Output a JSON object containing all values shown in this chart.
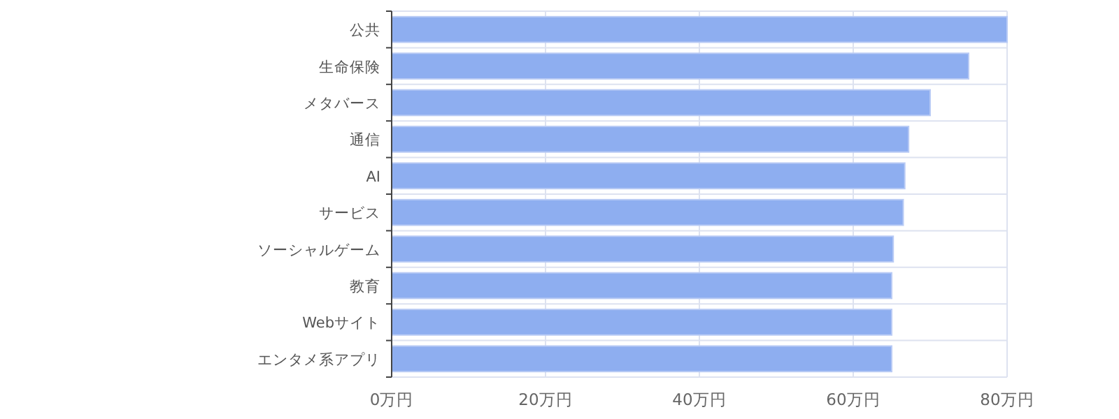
{
  "chart_data": {
    "type": "bar",
    "orientation": "horizontal",
    "categories": [
      "公共",
      "生命保険",
      "メタバース",
      "通信",
      "AI",
      "サービス",
      "ソーシャルゲーム",
      "教育",
      "Webサイト",
      "エンタメ系アプリ"
    ],
    "values": [
      80,
      75,
      70,
      67.2,
      66.7,
      66.5,
      65.2,
      65.0,
      65.0,
      65.0
    ],
    "color": "#8eaef0",
    "xlim": [
      0,
      80
    ],
    "xticks": [
      {
        "value": 0,
        "label": "0万円"
      },
      {
        "value": 20,
        "label": "20万円"
      },
      {
        "value": 40,
        "label": "40万円"
      },
      {
        "value": 60,
        "label": "60万円"
      },
      {
        "value": 80,
        "label": "80万円"
      }
    ],
    "grid": true
  }
}
